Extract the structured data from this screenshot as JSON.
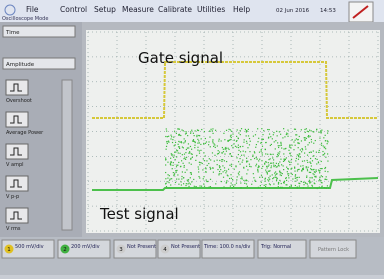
{
  "menu": {
    "items": [
      "File",
      "Control",
      "Setup",
      "Measure",
      "Calibrate",
      "Utilities",
      "Help"
    ],
    "date": "02 Jun 2016",
    "time": "14:53",
    "mode": "Oscilloscope Mode"
  },
  "left_panel": {
    "dropdowns": [
      "Time",
      "Amplitude"
    ],
    "buttons": [
      "Overshoot",
      "Average Power",
      "V ampl",
      "V p-p",
      "V rms"
    ]
  },
  "screen": {
    "labels": [
      "Gate signal",
      "Test signal"
    ]
  },
  "status_bar": {
    "channels": [
      {
        "number": "1",
        "scale": "500 mV/div"
      },
      {
        "number": "2",
        "scale": "200 mV/div"
      },
      {
        "number": "3",
        "scale": "Not Present"
      },
      {
        "number": "4",
        "scale": "Not Present"
      }
    ],
    "time": "Time: 100.0 ns/div",
    "trigger": "Trig: Normal",
    "pattern": "Pattern Lock"
  }
}
